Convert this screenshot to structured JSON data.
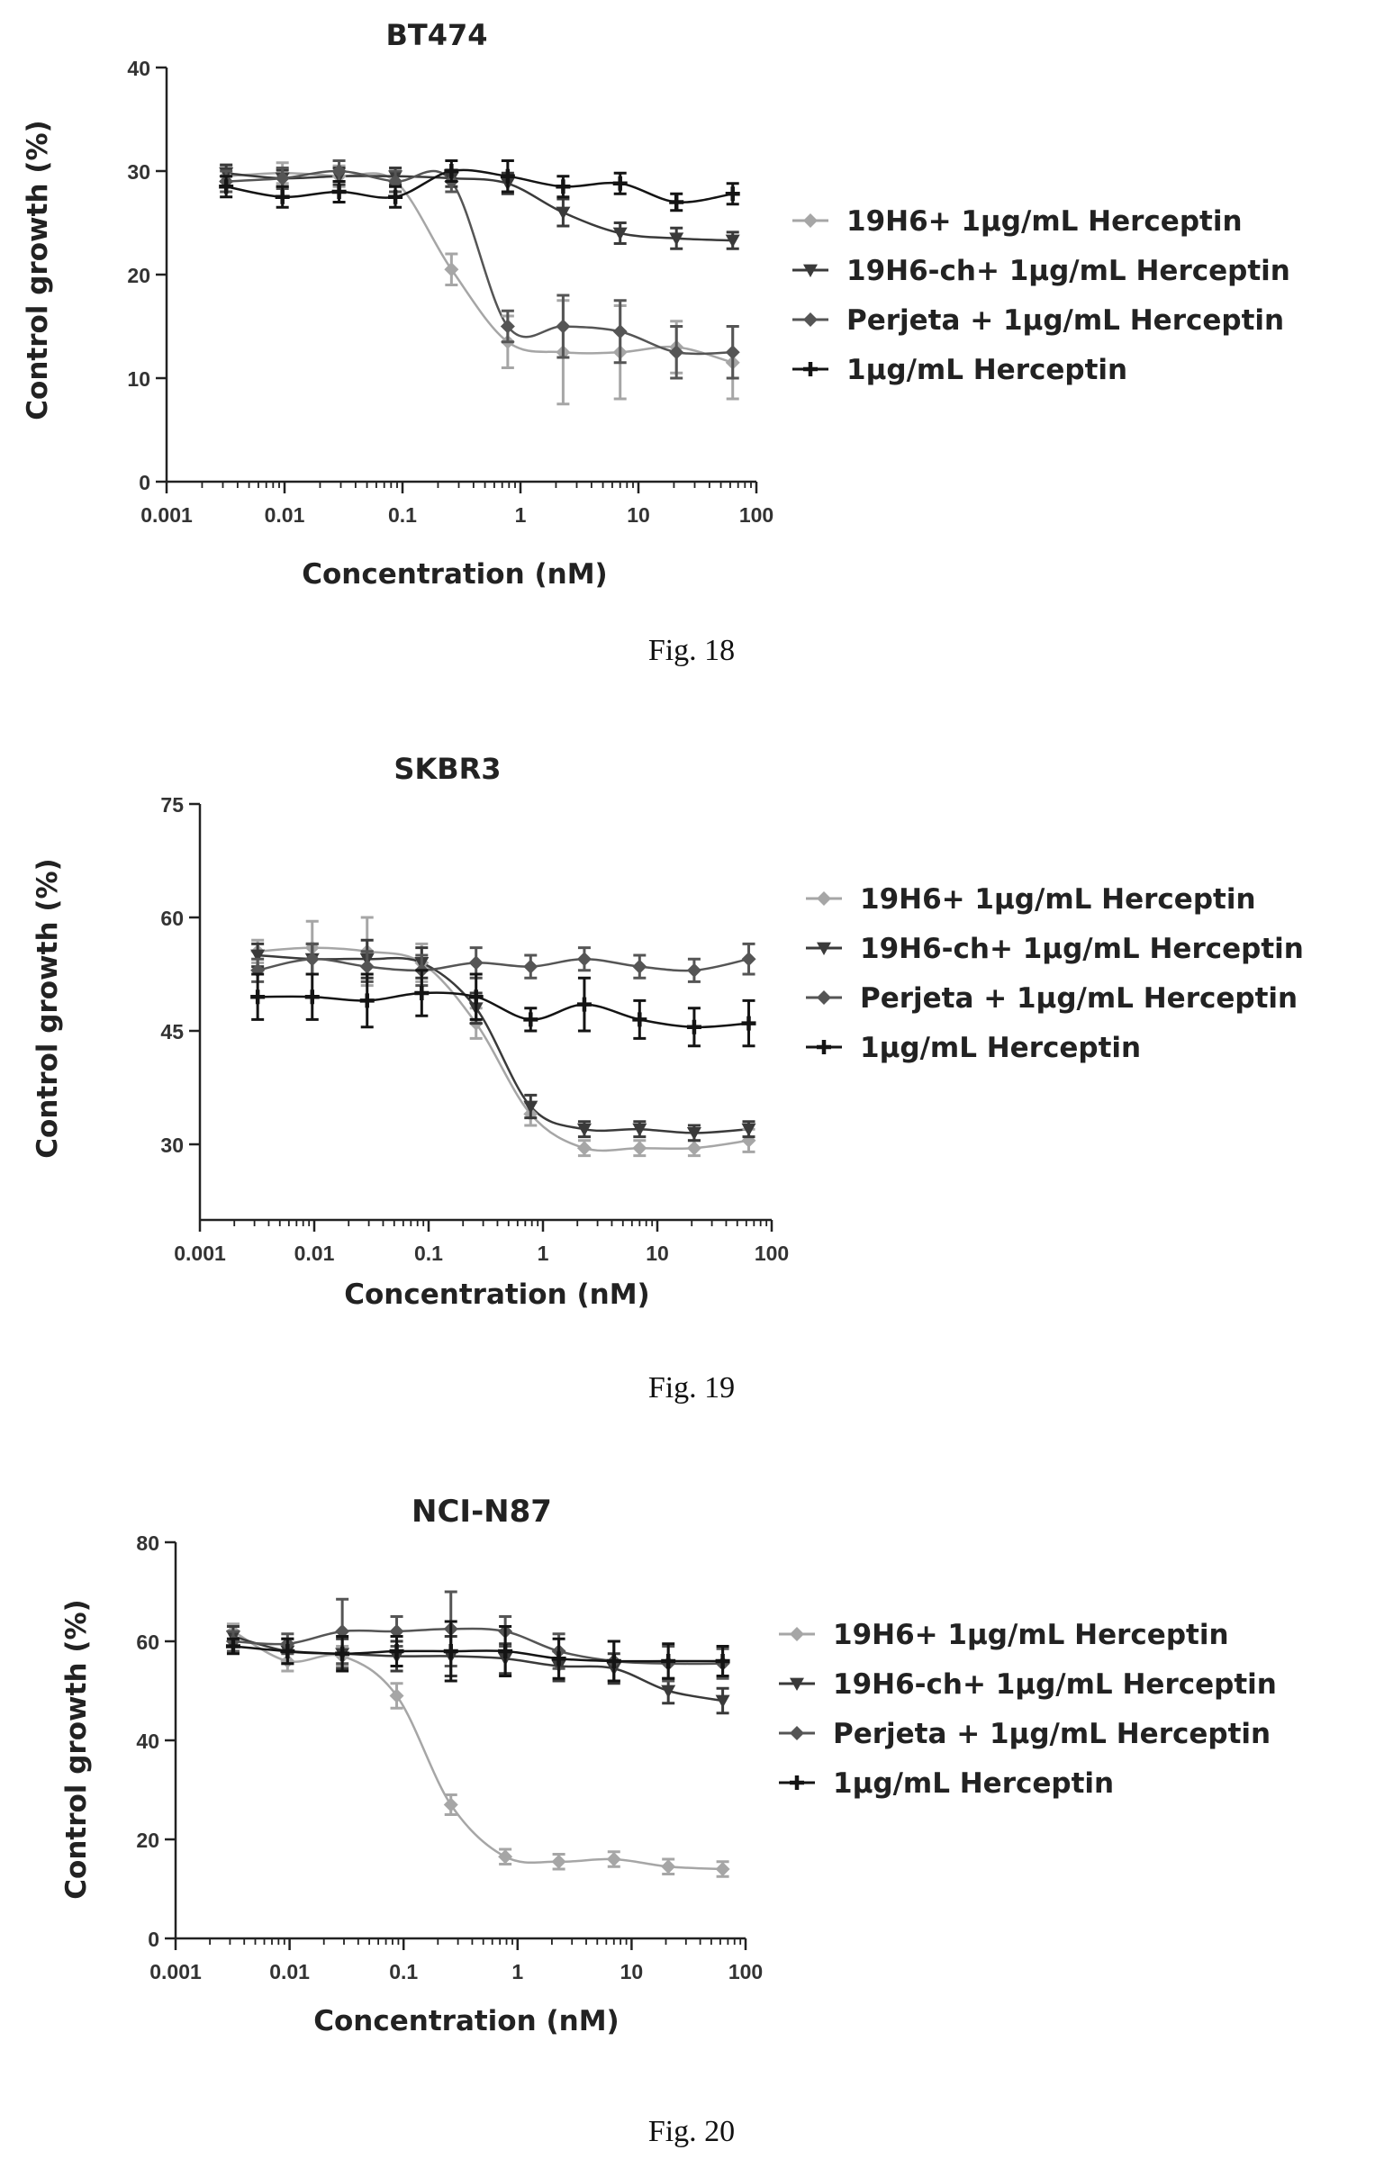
{
  "colors": {
    "s1": "#a6a6a6",
    "s2": "#3a3a3a",
    "s3": "#555555",
    "s4": "#141414"
  },
  "chart_data": [
    {
      "type": "scatter",
      "title": "BT474",
      "caption": "Fig. 18",
      "xlabel": "Concentration (nM)",
      "ylabel": "Control growth (%)",
      "xscale": "log",
      "xlim": [
        0.001,
        100
      ],
      "ylim": [
        0,
        40
      ],
      "xticks": [
        0.001,
        0.01,
        0.1,
        1,
        10,
        100
      ],
      "xtick_labels": [
        "0.001",
        "0.01",
        "0.1",
        "1",
        "10",
        "100"
      ],
      "yticks": [
        0,
        10,
        20,
        30,
        40
      ],
      "ytick_labels": [
        "0",
        "10",
        "20",
        "30",
        "40"
      ],
      "legend_position": "right",
      "x": [
        0.0032,
        0.0096,
        0.029,
        0.087,
        0.26,
        0.78,
        2.3,
        7,
        21,
        63
      ],
      "series": [
        {
          "name": "19H6+ 1µg/mL Herceptin",
          "values": [
            29.5,
            29.8,
            29.5,
            29.0,
            20.5,
            13.5,
            12.5,
            12.5,
            13.0,
            11.5
          ],
          "errors": [
            1.0,
            1.0,
            1.0,
            1.0,
            1.5,
            2.5,
            5.0,
            4.5,
            2.5,
            3.5
          ]
        },
        {
          "name": "19H6-ch+ 1µg/mL Herceptin",
          "values": [
            29.8,
            29.3,
            29.5,
            29.5,
            29.3,
            28.8,
            26.0,
            24.0,
            23.5,
            23.3
          ],
          "errors": [
            0.8,
            0.8,
            0.8,
            0.8,
            0.8,
            1.0,
            1.3,
            1.0,
            1.0,
            0.8
          ]
        },
        {
          "name": "Perjeta + 1µg/mL Herceptin",
          "values": [
            29.0,
            29.3,
            30.0,
            29.0,
            29.0,
            15.0,
            15.0,
            14.5,
            12.5,
            12.5
          ],
          "errors": [
            1.0,
            1.0,
            1.0,
            1.0,
            1.0,
            1.5,
            3.0,
            3.0,
            2.5,
            2.5
          ]
        },
        {
          "name": "1µg/mL Herceptin",
          "values": [
            28.5,
            27.5,
            28.0,
            27.5,
            30.0,
            29.5,
            28.5,
            28.8,
            27.0,
            27.8
          ],
          "errors": [
            1.0,
            1.0,
            1.0,
            1.0,
            1.0,
            1.5,
            1.0,
            1.0,
            0.8,
            1.0
          ]
        }
      ]
    },
    {
      "type": "scatter",
      "title": "SKBR3",
      "caption": "Fig. 19",
      "xlabel": "Concentration (nM)",
      "ylabel": "Control growth (%)",
      "xscale": "log",
      "xlim": [
        0.001,
        100
      ],
      "ylim": [
        20,
        75
      ],
      "xticks": [
        0.001,
        0.01,
        0.1,
        1,
        10,
        100
      ],
      "xtick_labels": [
        "0.001",
        "0.01",
        "0.1",
        "1",
        "10",
        "100"
      ],
      "yticks": [
        30,
        45,
        60,
        75
      ],
      "ytick_labels": [
        "30",
        "45",
        "60",
        "75"
      ],
      "legend_position": "right",
      "x": [
        0.0032,
        0.0096,
        0.029,
        0.087,
        0.26,
        0.78,
        2.3,
        7,
        21,
        63
      ],
      "series": [
        {
          "name": "19H6+ 1µg/mL Herceptin",
          "values": [
            55.5,
            56.0,
            55.5,
            54.0,
            46.0,
            34.0,
            29.5,
            29.5,
            29.5,
            30.5
          ],
          "errors": [
            1.5,
            3.5,
            4.5,
            2.5,
            2.0,
            1.5,
            1.0,
            1.0,
            1.0,
            1.5
          ]
        },
        {
          "name": "19H6-ch+ 1µg/mL Herceptin",
          "values": [
            55.0,
            54.5,
            54.5,
            54.0,
            48.0,
            35.0,
            32.0,
            32.0,
            31.5,
            32.0
          ],
          "errors": [
            1.5,
            2.0,
            2.5,
            2.0,
            2.0,
            1.5,
            1.0,
            1.0,
            1.0,
            1.0
          ]
        },
        {
          "name": "Perjeta + 1µg/mL Herceptin",
          "values": [
            53.0,
            54.5,
            53.5,
            53.0,
            54.0,
            53.5,
            54.5,
            53.5,
            53.0,
            54.5
          ],
          "errors": [
            1.5,
            2.0,
            2.0,
            2.0,
            2.0,
            1.5,
            1.5,
            1.5,
            1.5,
            2.0
          ]
        },
        {
          "name": "1µg/mL Herceptin",
          "values": [
            49.5,
            49.5,
            49.0,
            50.0,
            49.5,
            46.5,
            48.5,
            46.5,
            45.5,
            46.0
          ],
          "errors": [
            3.0,
            3.0,
            3.5,
            3.0,
            3.0,
            1.5,
            3.5,
            2.5,
            2.5,
            3.0
          ]
        }
      ]
    },
    {
      "type": "scatter",
      "title": "NCI-N87",
      "caption": "Fig. 20",
      "xlabel": "Concentration (nM)",
      "ylabel": "Control growth (%)",
      "xscale": "log",
      "xlim": [
        0.001,
        100
      ],
      "ylim": [
        0,
        80
      ],
      "xticks": [
        0.001,
        0.01,
        0.1,
        1,
        10,
        100
      ],
      "xtick_labels": [
        "0.001",
        "0.01",
        "0.1",
        "1",
        "10",
        "100"
      ],
      "yticks": [
        0,
        20,
        40,
        60,
        80
      ],
      "ytick_labels": [
        "0",
        "20",
        "40",
        "60",
        "80"
      ],
      "legend_position": "right",
      "x": [
        0.0032,
        0.0096,
        0.029,
        0.087,
        0.26,
        0.78,
        2.3,
        7,
        21,
        63
      ],
      "series": [
        {
          "name": "19H6+ 1µg/mL Herceptin",
          "values": [
            62.0,
            56.0,
            57.0,
            49.0,
            27.0,
            16.5,
            15.5,
            16.0,
            14.5,
            14.0
          ],
          "errors": [
            1.5,
            2.0,
            2.0,
            2.5,
            2.0,
            1.5,
            1.5,
            1.5,
            1.5,
            1.5
          ]
        },
        {
          "name": "19H6-ch+ 1µg/mL Herceptin",
          "values": [
            61.0,
            58.0,
            57.5,
            57.0,
            57.0,
            56.5,
            55.0,
            54.5,
            50.0,
            48.0
          ],
          "errors": [
            2.0,
            2.5,
            3.0,
            3.0,
            4.0,
            3.0,
            3.0,
            3.0,
            2.5,
            2.5
          ]
        },
        {
          "name": "Perjeta + 1µg/mL Herceptin",
          "values": [
            60.0,
            59.5,
            62.0,
            62.0,
            62.5,
            62.0,
            58.0,
            56.0,
            55.5,
            55.5
          ],
          "errors": [
            2.0,
            2.0,
            6.5,
            3.0,
            7.5,
            3.0,
            3.5,
            4.0,
            3.5,
            3.0
          ]
        },
        {
          "name": "1µg/mL Herceptin",
          "values": [
            59.0,
            58.0,
            57.5,
            58.0,
            58.0,
            58.0,
            56.5,
            56.0,
            56.0,
            56.0
          ],
          "errors": [
            1.5,
            2.5,
            3.5,
            3.0,
            6.0,
            5.0,
            4.0,
            4.0,
            3.5,
            3.0
          ]
        }
      ]
    }
  ]
}
